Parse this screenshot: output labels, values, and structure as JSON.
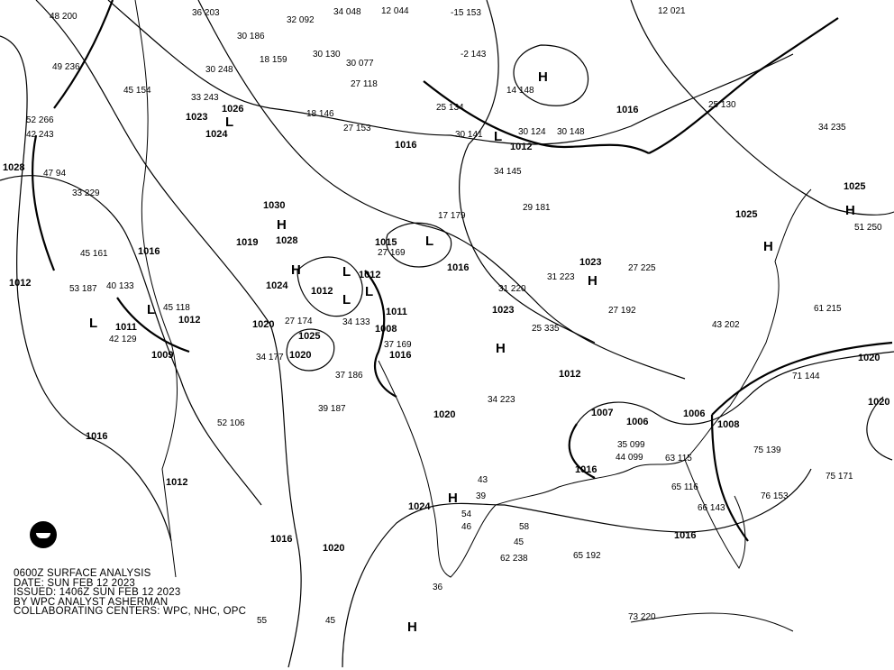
{
  "caption": {
    "line1": "0600Z SURFACE ANALYSIS",
    "line2": "DATE: SUN FEB 12 2023",
    "line3": "ISSUED: 1406Z SUN FEB 12 2023",
    "line4": "BY WPC ANALYST ASHERMAN",
    "line5": "COLLABORATING CENTERS: WPC, NHC, OPC"
  },
  "logo": "NOAA",
  "isobar_labels": [
    "1028",
    "1012",
    "1016",
    "1012",
    "1016",
    "1020",
    "1024",
    "1016",
    "1020",
    "1020",
    "1025",
    "1016",
    "1012",
    "1016",
    "1030",
    "1028",
    "1019",
    "1016",
    "1024",
    "1020",
    "1025",
    "1020",
    "1009",
    "1011",
    "1012",
    "1015",
    "1016",
    "1012",
    "1012",
    "1011",
    "1008",
    "1016",
    "1020",
    "1023",
    "1023",
    "1007",
    "1006",
    "1006",
    "1008",
    "1016",
    "1025",
    "1026",
    "1024",
    "1023",
    "1012"
  ],
  "pressure_centers": [
    "H",
    "H",
    "H",
    "H",
    "H",
    "H",
    "H",
    "H",
    "H",
    "L",
    "L",
    "L",
    "L",
    "L",
    "L",
    "L",
    "L"
  ],
  "station_values": [
    "48 200",
    "49 236",
    "52 266",
    "42 243",
    "47 94",
    "33 229",
    "36 203",
    "32 092",
    "34 048",
    "12 044",
    "-15 153",
    "-2 143",
    "14 148",
    "25 134",
    "30 141",
    "30 124",
    "30 148",
    "12 021",
    "25 130",
    "34 235",
    "51 250",
    "61 215",
    "71 144",
    "75 139",
    "75 171",
    "76 153",
    "65 192",
    "62 238",
    "73 220",
    "58",
    "45",
    "43",
    "39",
    "34 223",
    "31 223",
    "25 335",
    "27 225",
    "27 192",
    "43 202",
    "35 099",
    "63 115",
    "65 116",
    "66 143",
    "44 099",
    "31 220",
    "27 169",
    "29 181",
    "34 145",
    "27 153",
    "18 146",
    "27 118",
    "30 130",
    "30 077",
    "30 248",
    "18 159",
    "33 243",
    "45 154",
    "30 186",
    "45 118",
    "42 129",
    "53 187",
    "45 161",
    "40 133",
    "27 174",
    "34 177",
    "37 186",
    "39 187",
    "34 133",
    "37 169",
    "17 179",
    "52 106",
    "54",
    "46",
    "55",
    "45",
    "36"
  ],
  "colors": {
    "lines": "#000000",
    "background": "#ffffff"
  }
}
